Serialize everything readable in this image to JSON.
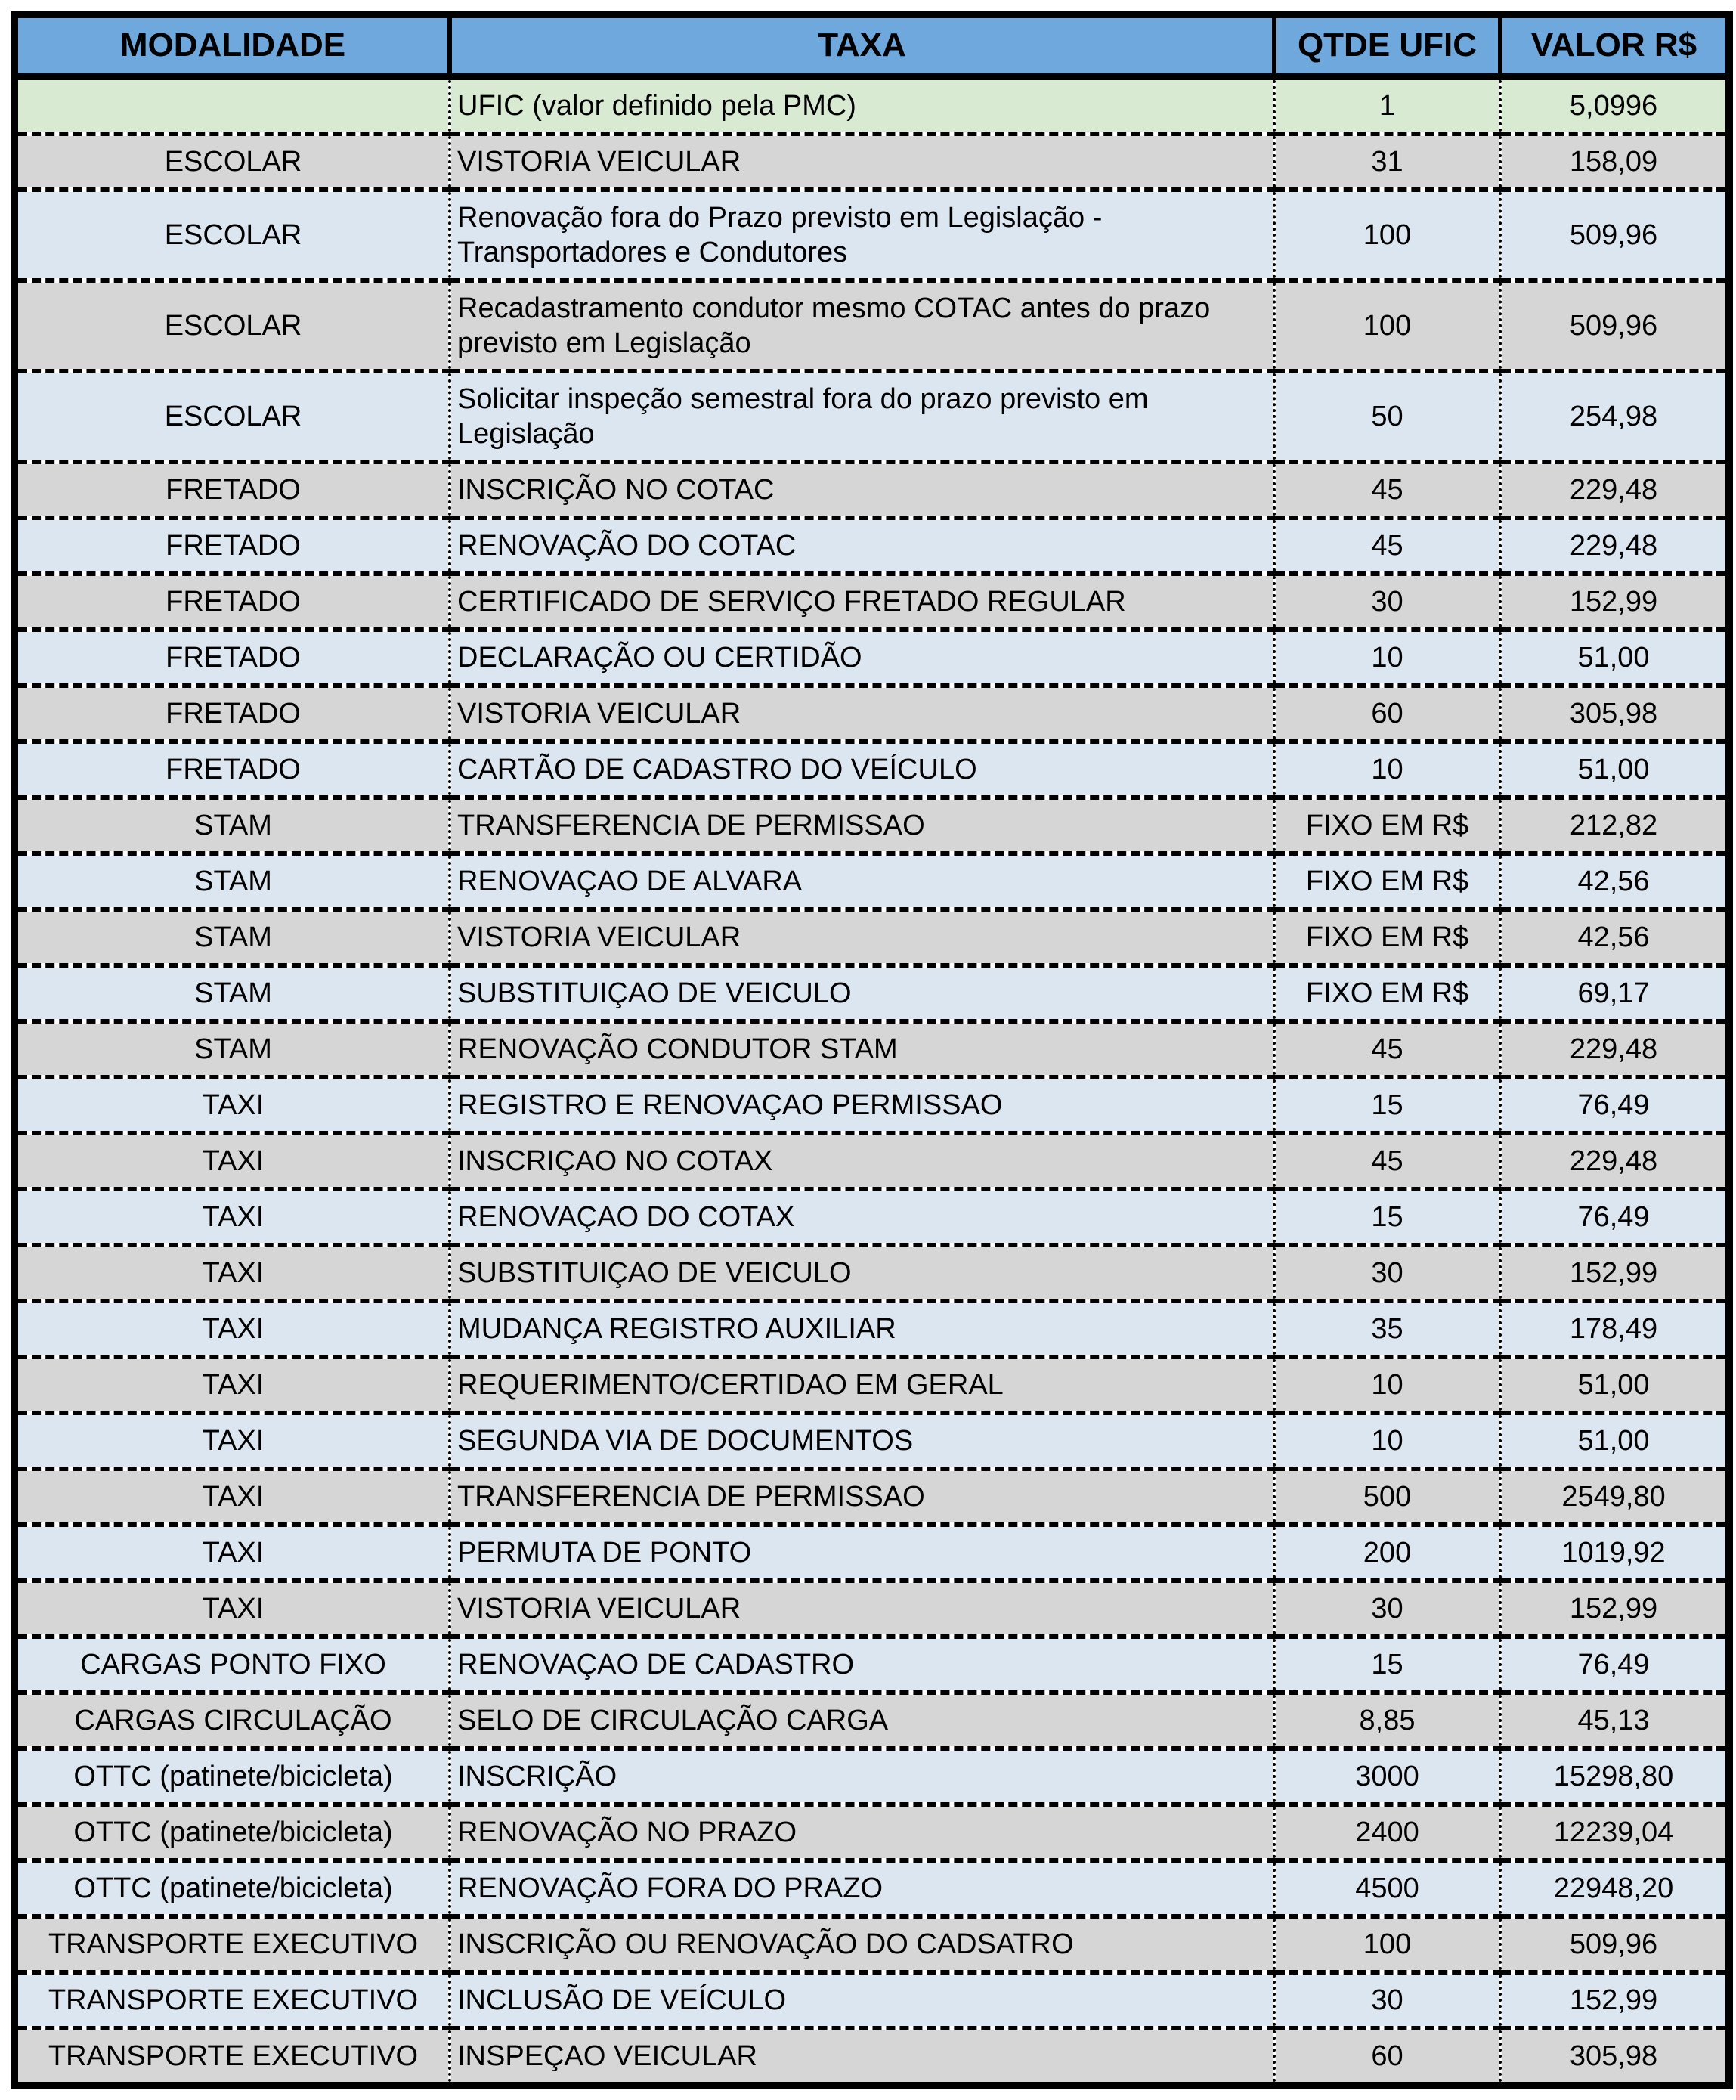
{
  "colors": {
    "header_bg": "#6fa8dc",
    "green_row": "#d9ead3",
    "gray_row": "#d6d6d6",
    "blue_row": "#dce6f1",
    "border": "#000000"
  },
  "table": {
    "columns": [
      "MODALIDADE",
      "TAXA",
      "QTDE UFIC",
      "VALOR R$"
    ],
    "rows": [
      {
        "modalidade": "",
        "taxa": "UFIC (valor definido pela PMC)",
        "qtde": "1",
        "valor": "5,0996",
        "tint": "green"
      },
      {
        "modalidade": "ESCOLAR",
        "taxa": "VISTORIA VEICULAR",
        "qtde": "31",
        "valor": "158,09",
        "tint": "gray"
      },
      {
        "modalidade": "ESCOLAR",
        "taxa": "Renovação fora do Prazo previsto em Legislação - Transportadores e Condutores",
        "qtde": "100",
        "valor": "509,96",
        "tint": "blue"
      },
      {
        "modalidade": "ESCOLAR",
        "taxa": "Recadastramento condutor mesmo COTAC antes do prazo previsto em Legislação",
        "qtde": "100",
        "valor": "509,96",
        "tint": "gray"
      },
      {
        "modalidade": "ESCOLAR",
        "taxa": "Solicitar inspeção semestral fora do prazo previsto em Legislação",
        "qtde": "50",
        "valor": "254,98",
        "tint": "blue"
      },
      {
        "modalidade": "FRETADO",
        "taxa": "INSCRIÇÃO NO COTAC",
        "qtde": "45",
        "valor": "229,48",
        "tint": "gray"
      },
      {
        "modalidade": "FRETADO",
        "taxa": "RENOVAÇÃO DO COTAC",
        "qtde": "45",
        "valor": "229,48",
        "tint": "blue"
      },
      {
        "modalidade": "FRETADO",
        "taxa": "CERTIFICADO DE SERVIÇO FRETADO REGULAR",
        "qtde": "30",
        "valor": "152,99",
        "tint": "gray"
      },
      {
        "modalidade": "FRETADO",
        "taxa": "DECLARAÇÃO OU CERTIDÃO",
        "qtde": "10",
        "valor": "51,00",
        "tint": "blue"
      },
      {
        "modalidade": "FRETADO",
        "taxa": "VISTORIA VEICULAR",
        "qtde": "60",
        "valor": "305,98",
        "tint": "gray"
      },
      {
        "modalidade": "FRETADO",
        "taxa": "CARTÃO DE CADASTRO DO VEÍCULO",
        "qtde": "10",
        "valor": "51,00",
        "tint": "blue"
      },
      {
        "modalidade": "STAM",
        "taxa": "TRANSFERENCIA DE PERMISSAO",
        "qtde": "FIXO EM R$",
        "valor": "212,82",
        "tint": "gray"
      },
      {
        "modalidade": "STAM",
        "taxa": "RENOVAÇAO DE ALVARA",
        "qtde": "FIXO EM R$",
        "valor": "42,56",
        "tint": "blue"
      },
      {
        "modalidade": "STAM",
        "taxa": "VISTORIA VEICULAR",
        "qtde": "FIXO EM R$",
        "valor": "42,56",
        "tint": "gray"
      },
      {
        "modalidade": "STAM",
        "taxa": "SUBSTITUIÇAO DE VEICULO",
        "qtde": "FIXO EM R$",
        "valor": "69,17",
        "tint": "blue"
      },
      {
        "modalidade": "STAM",
        "taxa": "RENOVAÇÃO CONDUTOR STAM",
        "qtde": "45",
        "valor": "229,48",
        "tint": "gray"
      },
      {
        "modalidade": "TAXI",
        "taxa": "REGISTRO E RENOVAÇAO PERMISSAO",
        "qtde": "15",
        "valor": "76,49",
        "tint": "blue"
      },
      {
        "modalidade": "TAXI",
        "taxa": "INSCRIÇAO NO COTAX",
        "qtde": "45",
        "valor": "229,48",
        "tint": "gray"
      },
      {
        "modalidade": "TAXI",
        "taxa": "RENOVAÇAO DO COTAX",
        "qtde": "15",
        "valor": "76,49",
        "tint": "blue"
      },
      {
        "modalidade": "TAXI",
        "taxa": "SUBSTITUIÇAO DE VEICULO",
        "qtde": "30",
        "valor": "152,99",
        "tint": "gray"
      },
      {
        "modalidade": "TAXI",
        "taxa": "MUDANÇA REGISTRO AUXILIAR",
        "qtde": "35",
        "valor": "178,49",
        "tint": "blue"
      },
      {
        "modalidade": "TAXI",
        "taxa": "REQUERIMENTO/CERTIDAO EM GERAL",
        "qtde": "10",
        "valor": "51,00",
        "tint": "gray"
      },
      {
        "modalidade": "TAXI",
        "taxa": "SEGUNDA VIA DE DOCUMENTOS",
        "qtde": "10",
        "valor": "51,00",
        "tint": "blue"
      },
      {
        "modalidade": "TAXI",
        "taxa": "TRANSFERENCIA DE PERMISSAO",
        "qtde": "500",
        "valor": "2549,80",
        "tint": "gray"
      },
      {
        "modalidade": "TAXI",
        "taxa": "PERMUTA DE PONTO",
        "qtde": "200",
        "valor": "1019,92",
        "tint": "blue"
      },
      {
        "modalidade": "TAXI",
        "taxa": "VISTORIA VEICULAR",
        "qtde": "30",
        "valor": "152,99",
        "tint": "gray"
      },
      {
        "modalidade": "CARGAS PONTO FIXO",
        "taxa": "RENOVAÇAO DE CADASTRO",
        "qtde": "15",
        "valor": "76,49",
        "tint": "blue"
      },
      {
        "modalidade": "CARGAS CIRCULAÇÃO",
        "taxa": "SELO DE CIRCULAÇÃO CARGA",
        "qtde": "8,85",
        "valor": "45,13",
        "tint": "gray"
      },
      {
        "modalidade": "OTTC (patinete/bicicleta)",
        "taxa": "INSCRIÇÃO",
        "qtde": "3000",
        "valor": "15298,80",
        "tint": "blue"
      },
      {
        "modalidade": "OTTC (patinete/bicicleta)",
        "taxa": "RENOVAÇÃO NO PRAZO",
        "qtde": "2400",
        "valor": "12239,04",
        "tint": "gray"
      },
      {
        "modalidade": "OTTC (patinete/bicicleta)",
        "taxa": "RENOVAÇÃO FORA DO PRAZO",
        "qtde": "4500",
        "valor": "22948,20",
        "tint": "blue"
      },
      {
        "modalidade": "TRANSPORTE EXECUTIVO",
        "taxa": "INSCRIÇÃO OU RENOVAÇÃO DO CADSATRO",
        "qtde": "100",
        "valor": "509,96",
        "tint": "gray"
      },
      {
        "modalidade": "TRANSPORTE EXECUTIVO",
        "taxa": "INCLUSÃO DE VEÍCULO",
        "qtde": "30",
        "valor": "152,99",
        "tint": "blue"
      },
      {
        "modalidade": "TRANSPORTE EXECUTIVO",
        "taxa": "INSPEÇAO VEICULAR",
        "qtde": "60",
        "valor": "305,98",
        "tint": "gray"
      }
    ]
  }
}
